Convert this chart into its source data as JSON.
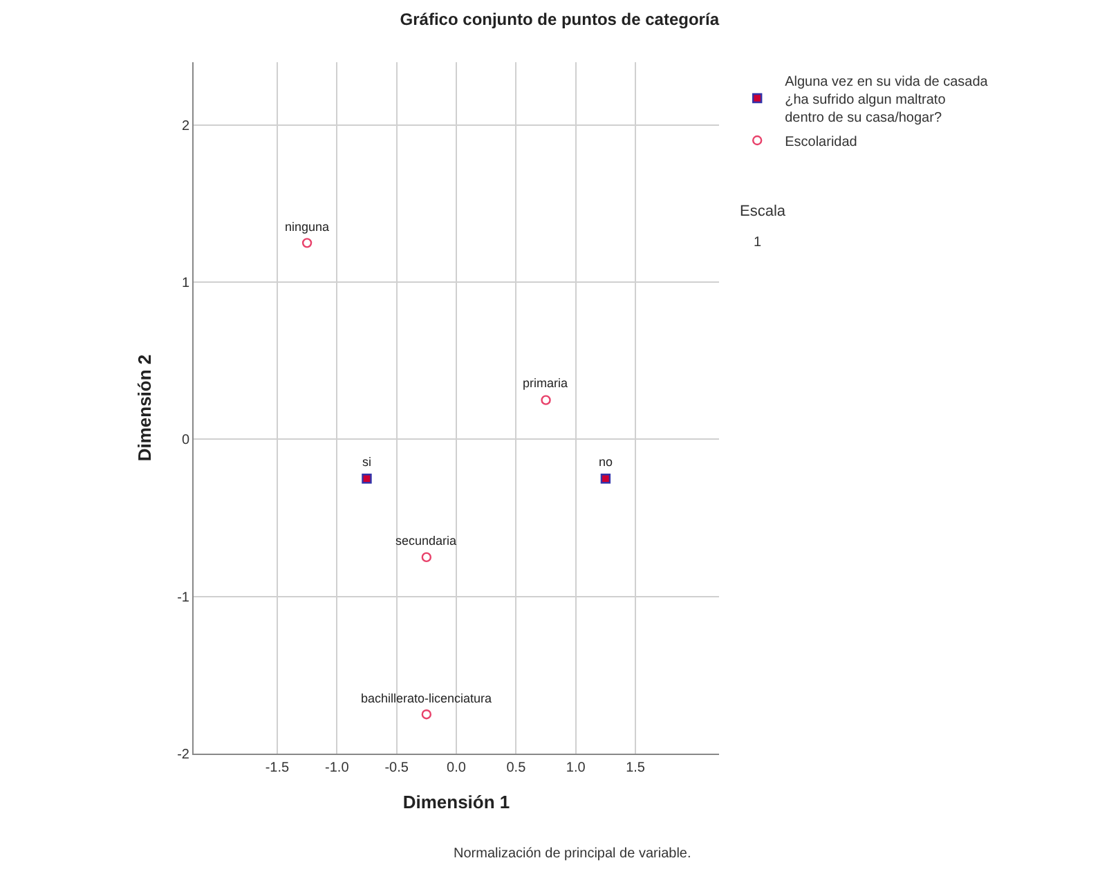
{
  "chart_data": {
    "type": "scatter",
    "title": "Gráfico conjunto de puntos de categoría",
    "xlabel": "Dimensión 1",
    "ylabel": "Dimensión 2",
    "series": [
      {
        "name": "Alguna vez en su vida de casada ¿ha sufrido algun maltrato dentro de su casa/hogar?",
        "color": "#cc0033",
        "marker": "square",
        "x": [
          -0.75,
          1.25
        ],
        "values": [
          -0.25,
          -0.25
        ]
      },
      {
        "name": "Escolaridad",
        "color": "#e8416a",
        "marker": "circle",
        "x": [
          -1.25,
          0.75,
          -0.25,
          -0.25
        ],
        "values": [
          1.25,
          0.25,
          -0.75,
          -1.75
        ]
      }
    ],
    "annotations": [
      {
        "text": "ninguna",
        "x": -1.25,
        "y": 1.25
      },
      {
        "text": "primaria",
        "x": 0.75,
        "y": 0.25
      },
      {
        "text": "si",
        "x": -0.75,
        "y": -0.25
      },
      {
        "text": "no",
        "x": 1.25,
        "y": -0.25
      },
      {
        "text": "secundaria",
        "x": -0.25,
        "y": -0.75
      },
      {
        "text": "bachillerato-licenciatura",
        "x": -0.25,
        "y": -1.75
      },
      "Escala",
      "1",
      "Normalización de principal de variable."
    ],
    "xlim": [
      -2.2,
      2.2
    ],
    "ylim": [
      -2,
      2.4
    ],
    "xticks": [
      {
        "value": -1.5,
        "label": "-1.5"
      },
      {
        "value": -1,
        "label": "-1.0"
      },
      {
        "value": -0.5,
        "label": "-0.5"
      },
      {
        "value": 0,
        "label": "0.0"
      },
      {
        "value": 0.5,
        "label": "0.5"
      },
      {
        "value": 1,
        "label": "1.0"
      },
      {
        "value": 1.5,
        "label": "1.5"
      }
    ],
    "yticks": [
      -2,
      -1,
      0,
      1,
      2
    ],
    "grid": true,
    "legend": "top right"
  }
}
